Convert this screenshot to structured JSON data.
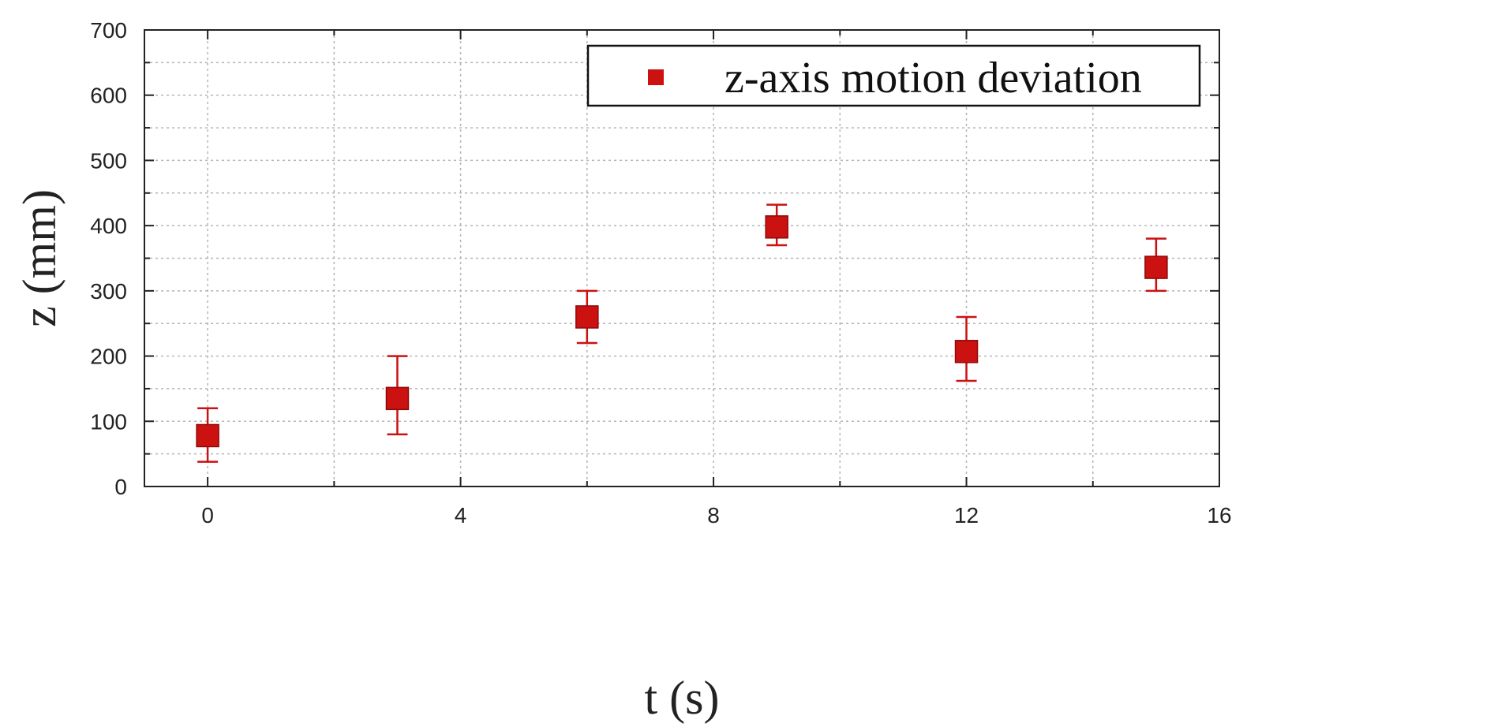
{
  "chart_data": {
    "type": "scatter",
    "title": "",
    "xlabel": "t (s)",
    "ylabel": "z (mm)",
    "xlim": [
      -1,
      16
    ],
    "ylim": [
      0,
      700
    ],
    "xticks": [
      0,
      4,
      8,
      12,
      16
    ],
    "yticks": [
      0,
      100,
      200,
      300,
      400,
      500,
      600,
      700
    ],
    "x_minor_grid": [
      2,
      6,
      10,
      14
    ],
    "y_minor_grid": [
      50,
      150,
      250,
      350,
      450,
      550,
      650
    ],
    "grid": true,
    "legend": {
      "position": "top-right"
    },
    "series": [
      {
        "name": "z-axis motion deviation",
        "color": "#cc1111",
        "marker": "square",
        "points": [
          {
            "x": 0,
            "y": 78,
            "err_low": 38,
            "err_high": 120
          },
          {
            "x": 3,
            "y": 135,
            "err_low": 80,
            "err_high": 200
          },
          {
            "x": 6,
            "y": 260,
            "err_low": 220,
            "err_high": 300
          },
          {
            "x": 9,
            "y": 398,
            "err_low": 370,
            "err_high": 432
          },
          {
            "x": 12,
            "y": 207,
            "err_low": 162,
            "err_high": 260
          },
          {
            "x": 15,
            "y": 336,
            "err_low": 300,
            "err_high": 380
          }
        ]
      }
    ]
  }
}
